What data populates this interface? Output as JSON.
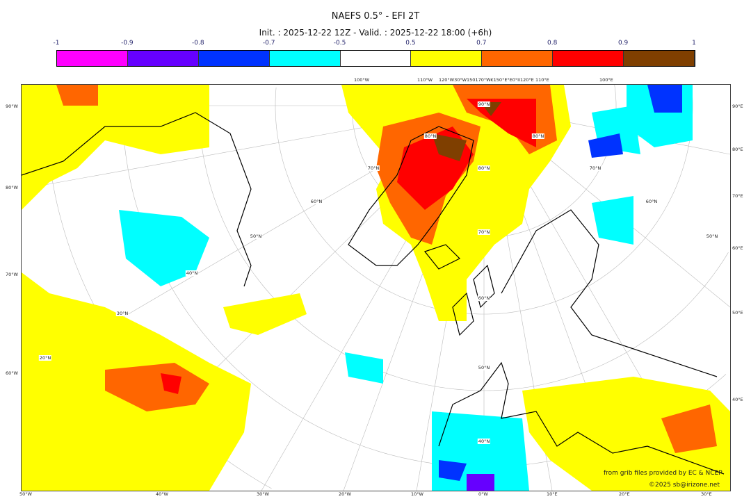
{
  "title": "NAEFS 0.5° - EFI 2T",
  "subtitle": "Init. : 2025-12-22 12Z - Valid. : 2025-12-22 18:00 (+6h)",
  "colorbar": {
    "ticks": [
      "-1",
      "-0.9",
      "-0.8",
      "-0.7",
      "-0.5",
      "0.5",
      "0.7",
      "0.8",
      "0.9",
      "1"
    ],
    "colors": [
      "#ff00ff",
      "#6600ff",
      "#0033ff",
      "#00ffff",
      "#ffffff",
      "#ffff00",
      "#ff6600",
      "#ff0000",
      "#7f3f00"
    ]
  },
  "colors": {
    "yellow": "#ffff00",
    "orange": "#ff6600",
    "red": "#ff0000",
    "brown": "#7f3f00",
    "cyan": "#00ffff",
    "blue": "#0033ff",
    "purple": "#6600ff",
    "magenta": "#ff00ff"
  },
  "axes": {
    "left": [
      "90°W",
      "80°W",
      "70°W",
      "60°W"
    ],
    "right": [
      "90°E",
      "80°E",
      "70°E",
      "60°E",
      "50°E",
      "40°E"
    ],
    "bottom": [
      "50°W",
      "40°W",
      "30°W",
      "20°W",
      "10°W",
      "0°W",
      "10°E",
      "20°E",
      "30°E"
    ],
    "top": [
      "100°W",
      "110°W",
      "120°W30°W150170°W€150°E°E0°II120°E",
      "110°E",
      "100°E"
    ],
    "interior": [
      "90°N",
      "80°N",
      "80°N",
      "70°N",
      "80°N",
      "70°N",
      "60°N",
      "60°N",
      "70°N",
      "50°N",
      "50°N",
      "40°N",
      "30°N",
      "60°N",
      "20°N",
      "50°N",
      "40°N"
    ]
  },
  "credits": {
    "line1": "from grib files provided by EC & NCEP",
    "line2": "©2025 sb@irizone.net"
  }
}
